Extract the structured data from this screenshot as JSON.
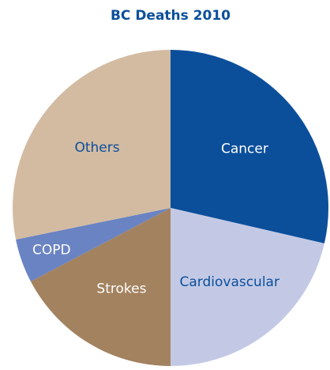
{
  "chart_data": {
    "type": "pie",
    "title": "BC Deaths 2010",
    "categories": [
      "Cancer",
      "Cardiovascular",
      "Strokes",
      "COPD",
      "Others"
    ],
    "values": [
      28.6,
      21.4,
      17.3,
      4.5,
      28.2
    ],
    "colors": [
      "#0b4f9b",
      "#c3c9e5",
      "#a3825f",
      "#6a83c3",
      "#d3bba2"
    ],
    "label_colors": [
      "#ffffff",
      "#0b4f9b",
      "#ffffff",
      "#ffffff",
      "#0b4f9b"
    ],
    "title_color": "#0b4f9b"
  }
}
